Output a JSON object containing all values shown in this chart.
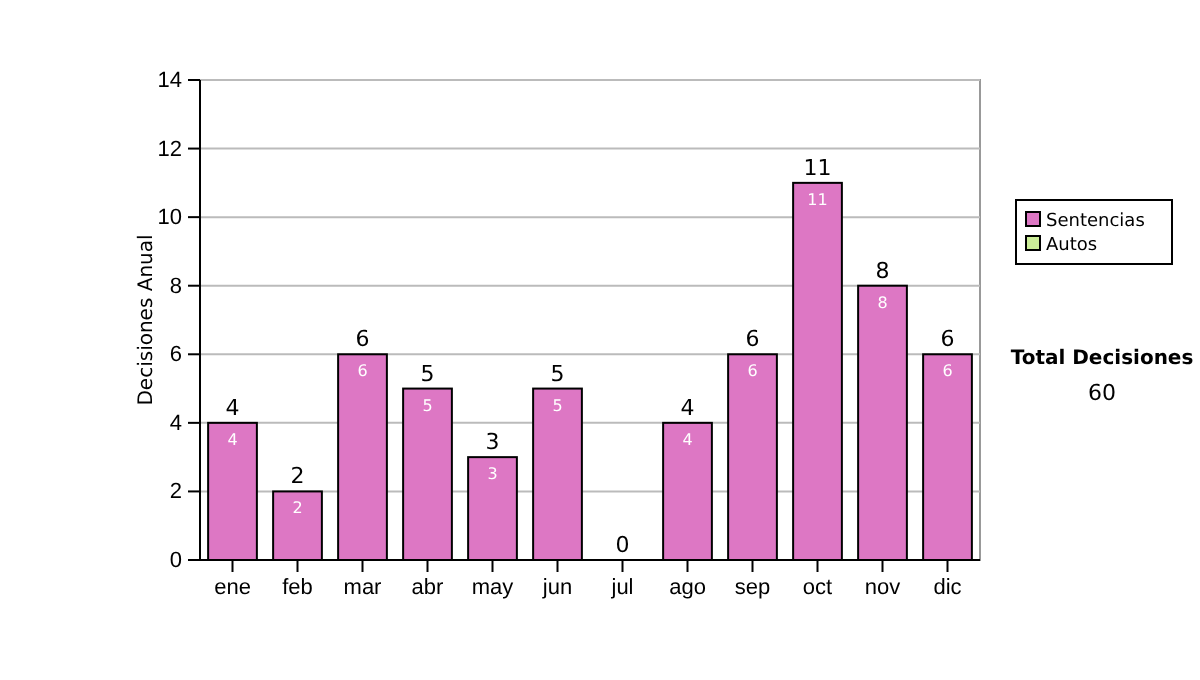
{
  "chart_data": {
    "type": "bar",
    "ylabel": "Decisiones Anual",
    "stacked": true,
    "categories": [
      "ene",
      "feb",
      "mar",
      "abr",
      "may",
      "jun",
      "jul",
      "ago",
      "sep",
      "oct",
      "nov",
      "dic"
    ],
    "series": [
      {
        "name": "Sentencias",
        "color": "#dd77c4",
        "values": [
          4,
          2,
          6,
          5,
          3,
          5,
          0,
          4,
          6,
          11,
          8,
          6
        ],
        "value_labels": [
          "4",
          "2",
          "6",
          "5",
          "3",
          "5",
          null,
          "4",
          "6",
          "11",
          "8",
          "6"
        ]
      },
      {
        "name": "Autos",
        "color": "#ccee99",
        "values": [
          0,
          0,
          0,
          0,
          0,
          0,
          0,
          0,
          0,
          0,
          0,
          0
        ]
      }
    ],
    "totals": [
      "4",
      "2",
      "6",
      "5",
      "3",
      "5",
      "0",
      "4",
      "6",
      "11",
      "8",
      "6"
    ],
    "ylim": [
      0,
      14
    ],
    "yticks": [
      0,
      2,
      4,
      6,
      8,
      10,
      12,
      14
    ],
    "grid": "y",
    "legend": "right",
    "annotations": [
      "Total Decisiones",
      "60"
    ]
  }
}
